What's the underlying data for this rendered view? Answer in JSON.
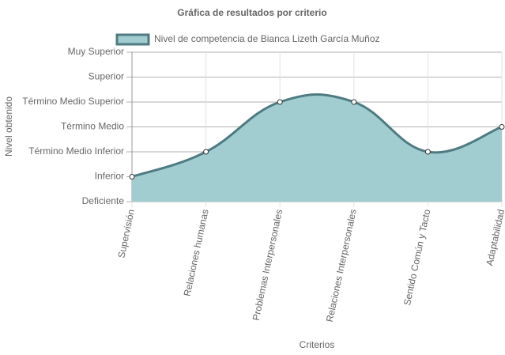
{
  "chart_data": {
    "type": "area",
    "title": "Gráfica de resultados por criterio",
    "x_label": "Criterios",
    "y_label": "Nivel obtenido",
    "categories": [
      "Supervisión",
      "Relaciones humanas",
      "Problemas Interpersonales",
      "Relaciones Interpersonales",
      "Sentido Común y Tacto",
      "Adaptabilidad"
    ],
    "series": [
      {
        "name": "Nivel de competencia de Bianca Lizeth García Muñoz",
        "color": "#4e7b82",
        "fill": "#a2cdd0",
        "values": [
          1,
          2,
          4,
          4,
          2,
          3
        ]
      }
    ],
    "ylim": [
      0,
      6
    ],
    "yticks": [
      {
        "value": 0,
        "label": "Deficiente"
      },
      {
        "value": 1,
        "label": "Inferior"
      },
      {
        "value": 2,
        "label": "Término Medio Inferior"
      },
      {
        "value": 3,
        "label": "Término Medio"
      },
      {
        "value": 4,
        "label": "Término Medio Superior"
      },
      {
        "value": 5,
        "label": "Superior"
      },
      {
        "value": 6,
        "label": "Muy Superior"
      }
    ],
    "grid": true,
    "legend": "top"
  }
}
